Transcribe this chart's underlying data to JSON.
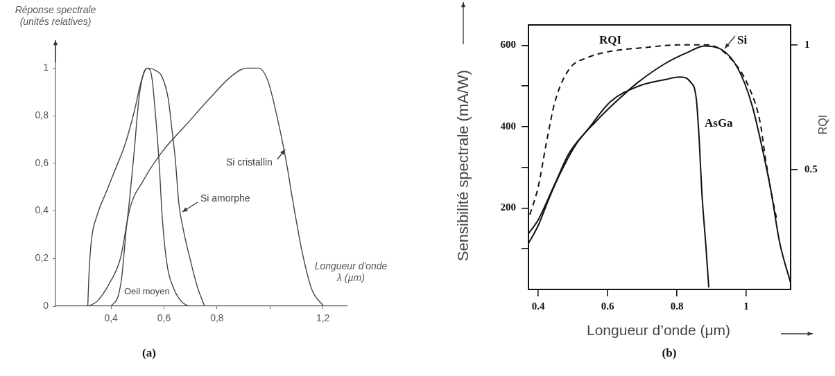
{
  "chart_data": [
    {
      "type": "line",
      "ylabel": "Réponse spectrale (unités relatives)",
      "xlabel": "Longueur d'onde λ (µm)",
      "xlim": [
        0.19,
        1.29
      ],
      "ylim": [
        0,
        1.1
      ],
      "xticks": [
        {
          "value": 0.4,
          "label": "0,4"
        },
        {
          "value": 0.6,
          "label": "0,6"
        },
        {
          "value": 0.8,
          "label": "0,8"
        },
        {
          "value": 1,
          "label": null
        },
        {
          "value": 1.2,
          "label": "1,2"
        }
      ],
      "yticks": [
        0,
        {
          "value": 0.2,
          "label": "0,2"
        },
        {
          "value": 0.4,
          "label": "0,4"
        },
        {
          "value": 0.6,
          "label": "0,6"
        },
        {
          "value": 0.8,
          "label": "0,8"
        },
        1
      ],
      "grid": false,
      "legend": false,
      "marker": "none",
      "line_style": "solid",
      "annotations": [
        "(a)"
      ],
      "series": [
        {
          "name": "Oeil moyen",
          "color": "#444444",
          "x": [
            0.4,
            0.426,
            0.44,
            0.457,
            0.471,
            0.488,
            0.506,
            0.523,
            0.537,
            0.554,
            0.568,
            0.581,
            0.594,
            0.612,
            0.638,
            0.665,
            0.691
          ],
          "values": [
            0,
            0.04,
            0.12,
            0.32,
            0.46,
            0.66,
            0.88,
            0.98,
            1.0,
            0.96,
            0.8,
            0.61,
            0.36,
            0.17,
            0.07,
            0.02,
            0
          ]
        },
        {
          "name": "Si amorphe",
          "color": "#444444",
          "x": [
            0.312,
            0.316,
            0.325,
            0.347,
            0.382,
            0.418,
            0.453,
            0.488,
            0.515,
            0.537,
            0.568,
            0.594,
            0.616,
            0.629,
            0.643,
            0.656,
            0.673,
            0.7,
            0.726,
            0.753
          ],
          "values": [
            0,
            0.12,
            0.27,
            0.38,
            0.48,
            0.58,
            0.68,
            0.82,
            0.95,
            1.0,
            0.99,
            0.96,
            0.87,
            0.75,
            0.61,
            0.43,
            0.32,
            0.19,
            0.08,
            0
          ]
        },
        {
          "name": "Si cristallin",
          "color": "#444444",
          "x": [
            0.316,
            0.347,
            0.391,
            0.435,
            0.471,
            0.523,
            0.594,
            0.682,
            0.77,
            0.859,
            0.911,
            0.956,
            0.991,
            1.026,
            1.061,
            1.088,
            1.123,
            1.158,
            1.202
          ],
          "values": [
            0,
            0.02,
            0.09,
            0.2,
            0.41,
            0.53,
            0.65,
            0.76,
            0.87,
            0.97,
            1.0,
            1.0,
            0.95,
            0.8,
            0.61,
            0.43,
            0.22,
            0.07,
            0
          ]
        }
      ]
    },
    {
      "type": "line",
      "ylabel": "Sensibilité spectrale (mA/W)",
      "y2label": "RQI",
      "xlabel": "Longueur d’onde (μm)",
      "xlim": [
        0.372,
        1.128
      ],
      "ylim": [
        0,
        650
      ],
      "y2lim": [
        0.02,
        1.08
      ],
      "xticks": [
        0.4,
        0.6,
        0.8,
        1
      ],
      "yticks": [
        {
          "value": 100,
          "label": null
        },
        200,
        {
          "value": 300,
          "label": null
        },
        400,
        {
          "value": 500,
          "label": null
        },
        600
      ],
      "y2ticks": [
        0.5,
        1
      ],
      "grid": false,
      "legend": false,
      "marker": "none",
      "line_style": "solid",
      "annotations": [
        "(b)"
      ],
      "series": [
        {
          "name": "Si",
          "color": "#111111",
          "x": [
            0.372,
            0.4,
            0.432,
            0.464,
            0.512,
            0.568,
            0.624,
            0.688,
            0.768,
            0.832,
            0.88,
            0.928,
            0.976,
            1.016,
            1.048,
            1.072,
            1.096,
            1.128
          ],
          "values": [
            113,
            157,
            225,
            286,
            360,
            414,
            461,
            509,
            556,
            583,
            598,
            590,
            543,
            455,
            340,
            239,
            117,
            16
          ]
        },
        {
          "name": "AsGa",
          "color": "#111111",
          "x": [
            0.372,
            0.4,
            0.448,
            0.488,
            0.544,
            0.608,
            0.688,
            0.768,
            0.808,
            0.84,
            0.856,
            0.864,
            0.872,
            0.884,
            0.892
          ],
          "values": [
            137,
            171,
            259,
            333,
            394,
            461,
            499,
            516,
            522,
            509,
            468,
            374,
            239,
            103,
            5
          ]
        },
        {
          "name": "RQI",
          "color": "#111111",
          "axis": "y2",
          "line_style": "dashed",
          "x": [
            0.376,
            0.4,
            0.424,
            0.448,
            0.488,
            0.544,
            0.592,
            0.712,
            0.808,
            0.888,
            0.952,
            1.008,
            1.04,
            1.056,
            1.072,
            1.088
          ],
          "values": [
            0.32,
            0.43,
            0.61,
            0.77,
            0.9,
            0.95,
            0.97,
            0.99,
            1.0,
            1.0,
            0.95,
            0.83,
            0.69,
            0.54,
            0.41,
            0.3
          ]
        }
      ]
    }
  ]
}
